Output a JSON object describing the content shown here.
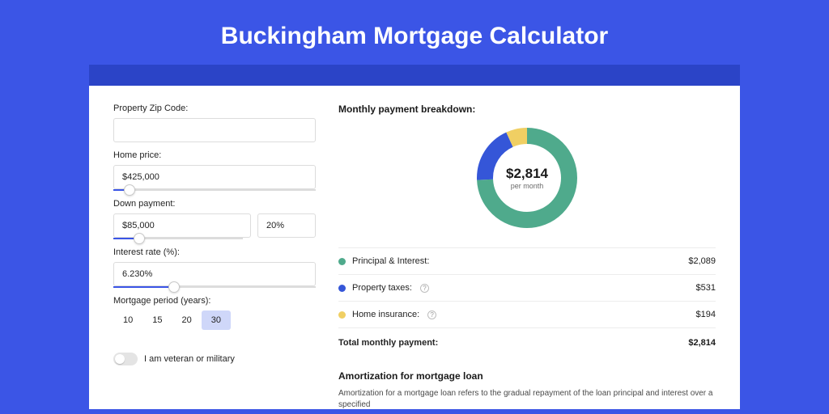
{
  "page": {
    "title": "Buckingham Mortgage Calculator",
    "background_color": "#3b55e6",
    "strip_color": "#2b44c7",
    "card_color": "#ffffff"
  },
  "form": {
    "zip": {
      "label": "Property Zip Code:",
      "value": ""
    },
    "home_price": {
      "label": "Home price:",
      "value": "$425,000",
      "slider_pct": 8
    },
    "down_payment": {
      "label": "Down payment:",
      "value": "$85,000",
      "pct_value": "20%",
      "slider_pct": 20
    },
    "interest_rate": {
      "label": "Interest rate (%):",
      "value": "6.230%",
      "slider_pct": 30
    },
    "period": {
      "label": "Mortgage period (years):",
      "options": [
        "10",
        "15",
        "20",
        "30"
      ],
      "selected_index": 3
    },
    "veteran": {
      "label": "I am veteran or military",
      "on": false
    }
  },
  "breakdown": {
    "title": "Monthly payment breakdown:",
    "donut": {
      "amount": "$2,814",
      "per_label": "per month",
      "stroke_width": 20,
      "radius": 52,
      "segments": [
        {
          "name": "principal_interest",
          "color": "#4faa8c",
          "value": 2089
        },
        {
          "name": "property_taxes",
          "color": "#3556d8",
          "value": 531
        },
        {
          "name": "home_insurance",
          "color": "#f0cf63",
          "value": 194
        }
      ]
    },
    "items": [
      {
        "color": "#4faa8c",
        "label": "Principal & Interest:",
        "value": "$2,089",
        "info": false
      },
      {
        "color": "#3556d8",
        "label": "Property taxes:",
        "value": "$531",
        "info": true
      },
      {
        "color": "#f0cf63",
        "label": "Home insurance:",
        "value": "$194",
        "info": true
      }
    ],
    "total": {
      "label": "Total monthly payment:",
      "value": "$2,814"
    }
  },
  "amortization": {
    "title": "Amortization for mortgage loan",
    "body": "Amortization for a mortgage loan refers to the gradual repayment of the loan principal and interest over a specified"
  }
}
